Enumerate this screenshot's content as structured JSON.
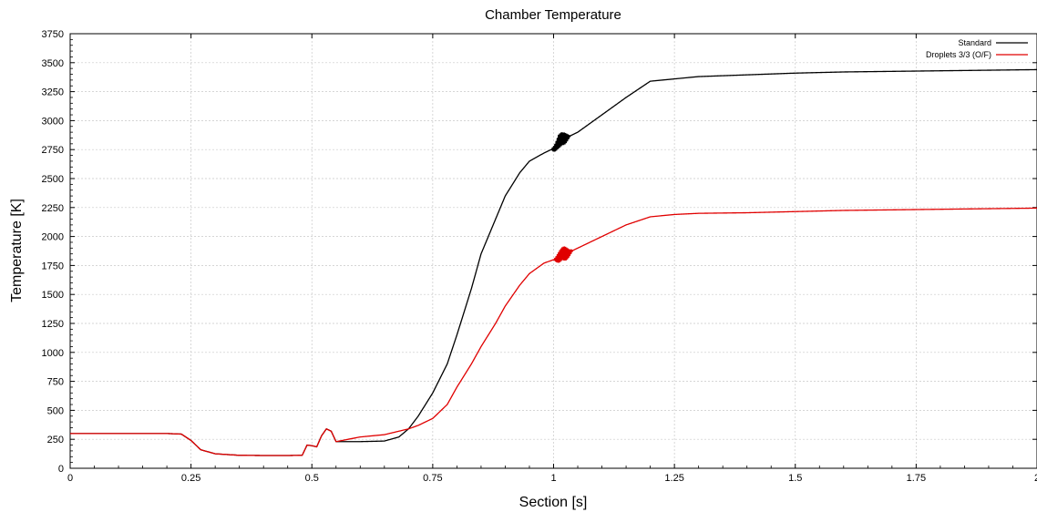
{
  "chart_data": {
    "type": "line",
    "title": "Chamber Temperature",
    "xlabel": "Section [s]",
    "ylabel": "Temperature [K]",
    "xlim": [
      0,
      2
    ],
    "ylim": [
      0,
      3750
    ],
    "xticks": [
      0,
      0.25,
      0.5,
      0.75,
      1,
      1.25,
      1.5,
      1.75,
      2
    ],
    "xtick_labels": [
      "0",
      "0.25",
      "0.5",
      "0.75",
      "1",
      "1.25",
      "1.5",
      "1.75",
      "2"
    ],
    "yticks": [
      0,
      250,
      500,
      750,
      1000,
      1250,
      1500,
      1750,
      2000,
      2250,
      2500,
      2750,
      3000,
      3250,
      3500,
      3750
    ],
    "ytick_labels": [
      "0",
      "250",
      "500",
      "750",
      "1000",
      "1250",
      "1500",
      "1750",
      "2000",
      "2250",
      "2500",
      "2750",
      "3000",
      "3250",
      "3500",
      "3750"
    ],
    "grid": true,
    "legend_position": "top-right",
    "series": [
      {
        "name": "Standard",
        "color": "#000000",
        "x": [
          0,
          0.1,
          0.2,
          0.23,
          0.25,
          0.27,
          0.3,
          0.35,
          0.4,
          0.45,
          0.48,
          0.49,
          0.5,
          0.51,
          0.52,
          0.53,
          0.54,
          0.55,
          0.6,
          0.65,
          0.68,
          0.7,
          0.72,
          0.75,
          0.78,
          0.8,
          0.83,
          0.85,
          0.88,
          0.9,
          0.93,
          0.95,
          0.98,
          1.0,
          1.01,
          1.02,
          1.03,
          1.05,
          1.1,
          1.15,
          1.2,
          1.25,
          1.3,
          1.4,
          1.5,
          1.6,
          1.7,
          1.8,
          1.9,
          2.0
        ],
        "y": [
          300,
          300,
          300,
          295,
          240,
          160,
          125,
          112,
          110,
          110,
          112,
          200,
          195,
          185,
          280,
          340,
          320,
          230,
          230,
          235,
          270,
          340,
          450,
          650,
          900,
          1150,
          1550,
          1850,
          2150,
          2350,
          2550,
          2650,
          2720,
          2760,
          2820,
          2830,
          2860,
          2900,
          3050,
          3200,
          3340,
          3360,
          3380,
          3395,
          3410,
          3420,
          3425,
          3430,
          3435,
          3440
        ],
        "noisy_region": [
          0.995,
          1.035
        ]
      },
      {
        "name": "Droplets 3/3 (O/F)",
        "color": "#e00000",
        "x": [
          0,
          0.1,
          0.2,
          0.23,
          0.25,
          0.27,
          0.3,
          0.35,
          0.4,
          0.45,
          0.48,
          0.49,
          0.5,
          0.51,
          0.52,
          0.53,
          0.54,
          0.55,
          0.6,
          0.65,
          0.7,
          0.72,
          0.75,
          0.78,
          0.8,
          0.83,
          0.85,
          0.88,
          0.9,
          0.93,
          0.95,
          0.98,
          1.0,
          1.01,
          1.02,
          1.03,
          1.05,
          1.1,
          1.15,
          1.2,
          1.25,
          1.3,
          1.4,
          1.5,
          1.6,
          1.7,
          1.8,
          1.9,
          2.0
        ],
        "y": [
          300,
          300,
          300,
          295,
          240,
          160,
          125,
          112,
          110,
          110,
          112,
          200,
          195,
          185,
          280,
          340,
          320,
          230,
          270,
          290,
          340,
          370,
          430,
          550,
          700,
          900,
          1050,
          1250,
          1400,
          1580,
          1680,
          1770,
          1800,
          1820,
          1840,
          1860,
          1900,
          2000,
          2100,
          2170,
          2190,
          2200,
          2205,
          2215,
          2225,
          2230,
          2235,
          2240,
          2245
        ],
        "noisy_region": [
          1.0,
          1.04
        ]
      }
    ]
  }
}
